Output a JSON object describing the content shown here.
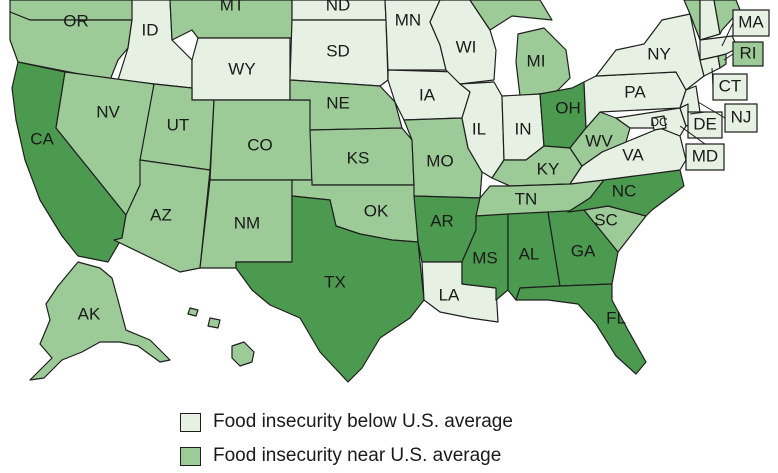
{
  "colors": {
    "below": "#e6f1e3",
    "near": "#9ccb98",
    "above": "#4c9a4f",
    "outline": "#1f1f1f"
  },
  "legend": [
    {
      "category": "below",
      "label": "Food insecurity below U.S. average"
    },
    {
      "category": "near",
      "label": "Food insecurity near U.S. average"
    }
  ],
  "states": {
    "WA": "near",
    "OR": "near",
    "CA": "above",
    "ID": "below",
    "NV": "near",
    "MT": "near",
    "WY": "below",
    "UT": "near",
    "AZ": "near",
    "CO": "near",
    "NM": "near",
    "ND": "below",
    "SD": "below",
    "NE": "near",
    "KS": "near",
    "OK": "near",
    "TX": "above",
    "MN": "below",
    "IA": "below",
    "MO": "near",
    "AR": "above",
    "LA": "below",
    "WI": "below",
    "IL": "below",
    "MI": "near",
    "IN": "below",
    "OH": "above",
    "KY": "near",
    "TN": "near",
    "MS": "above",
    "AL": "above",
    "GA": "above",
    "FL": "above",
    "SC": "near",
    "NC": "above",
    "VA": "below",
    "WV": "near",
    "PA": "below",
    "NY": "below",
    "VT": "near",
    "NH": "below",
    "ME": "near",
    "MA": "below",
    "RI": "near",
    "CT": "below",
    "NJ": "below",
    "DE": "below",
    "MD": "below",
    "DC": "below",
    "AK": "near",
    "HI": "near"
  },
  "labels": {
    "OR": "OR",
    "ID": "ID",
    "MT": "MT",
    "ND": "ND",
    "MN": "MN",
    "WI": "WI",
    "SD": "SD",
    "WY": "WY",
    "NV": "NV",
    "CA": "CA",
    "UT": "UT",
    "CO": "CO",
    "NE": "NE",
    "IA": "IA",
    "IL": "IL",
    "IN": "IN",
    "OH": "OH",
    "KS": "KS",
    "MO": "MO",
    "KY": "KY",
    "WV": "WV",
    "VA": "VA",
    "AZ": "AZ",
    "NM": "NM",
    "OK": "OK",
    "AR": "AR",
    "TN": "TN",
    "NC": "NC",
    "SC": "SC",
    "TX": "TX",
    "MS": "MS",
    "AL": "AL",
    "GA": "GA",
    "LA": "LA",
    "FL": "FL",
    "AK": "AK",
    "NY": "NY",
    "PA": "PA",
    "MI": "MI",
    "DC": "DC",
    "MA": "MA",
    "RI": "RI",
    "CT": "CT",
    "NJ": "NJ",
    "DE": "DE",
    "MD": "MD"
  }
}
